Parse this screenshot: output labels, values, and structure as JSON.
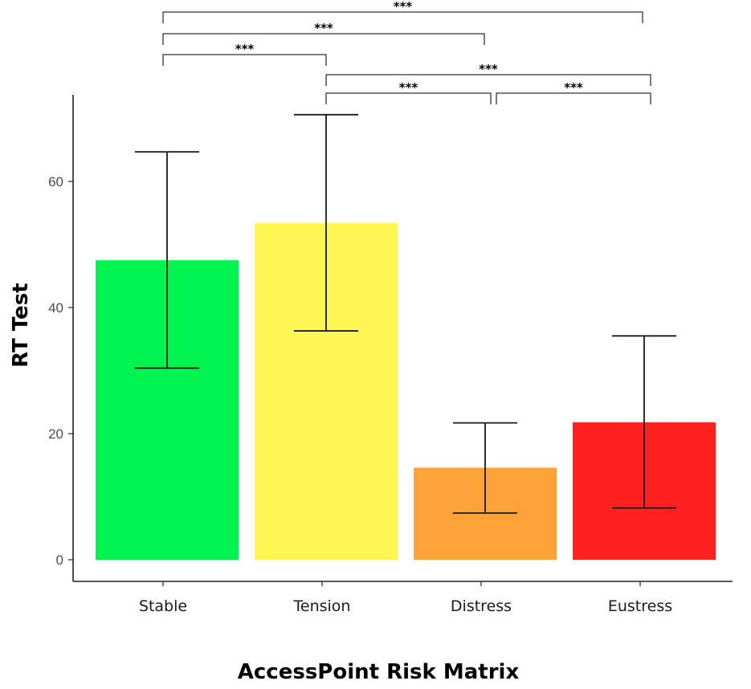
{
  "chart_data": {
    "type": "bar",
    "title": "",
    "xlabel": "AccessPoint Risk Matrix",
    "ylabel": "RT Test",
    "categories": [
      "Stable",
      "Tension",
      "Distress",
      "Eustress"
    ],
    "values": [
      47.5,
      53.4,
      14.6,
      21.8
    ],
    "error_low": [
      30.4,
      36.3,
      7.4,
      8.2
    ],
    "error_high": [
      64.7,
      70.6,
      21.7,
      35.5
    ],
    "colors": [
      "#00F44F",
      "#FFF653",
      "#FFA338",
      "#FF2020"
    ],
    "ylim": [
      0,
      70
    ],
    "yticks": [
      0,
      20,
      40,
      60
    ],
    "grid": false,
    "legend": "none",
    "significance": [
      {
        "from": 0,
        "to": 3,
        "label": "***"
      },
      {
        "from": 0,
        "to": 2,
        "label": "***"
      },
      {
        "from": 0,
        "to": 1,
        "label": "***"
      },
      {
        "from": 1,
        "to": 3,
        "label": "***"
      },
      {
        "from": 1,
        "to": 2,
        "label": "***"
      },
      {
        "from": 2,
        "to": 3,
        "label": "***"
      }
    ]
  }
}
